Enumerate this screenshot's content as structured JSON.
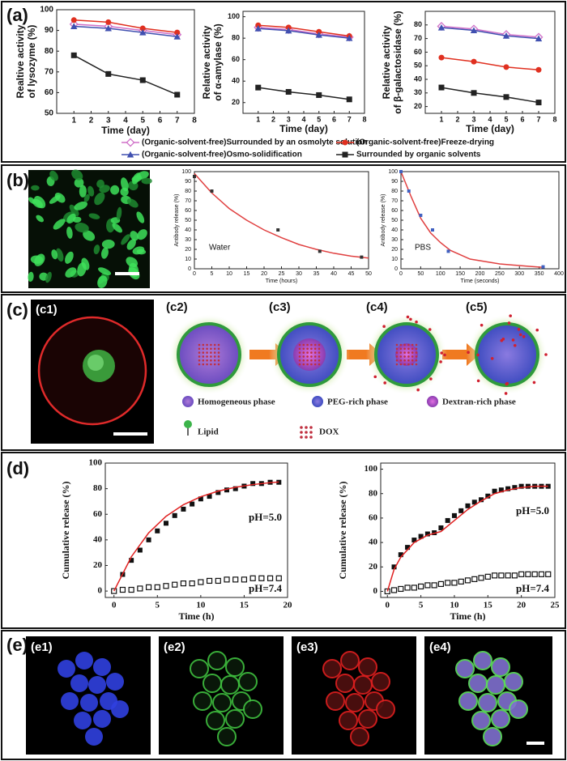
{
  "panels": {
    "a": "(a)",
    "b": "(b)",
    "c": "(c)",
    "d": "(d)",
    "e": "(e)"
  },
  "panel_c": {
    "sublabels": [
      "(c1)",
      "(c2)",
      "(c3)",
      "(c4)",
      "(c5)"
    ],
    "legend": [
      "Homogeneous phase",
      "PEG-rich phase",
      "Dextran-rich phase",
      "Lipid",
      "DOX"
    ]
  },
  "panel_e": {
    "sublabels": [
      "(e1)",
      "(e2)",
      "(e3)",
      "(e4)"
    ]
  },
  "chart_data": [
    {
      "type": "line",
      "xlabel": "Time (day)",
      "ylabel": [
        "Realtive activity",
        "of lysozyme (%)"
      ],
      "xlim": [
        0,
        8
      ],
      "xticks": [
        1,
        2,
        3,
        4,
        5,
        6,
        7,
        8
      ],
      "ylim": [
        50,
        100
      ],
      "yticks": [
        50,
        60,
        70,
        80,
        90,
        100
      ],
      "series": [
        {
          "name": "(Organic-solvent-free)Surrounded by an osmolyte solution",
          "color": "#d070c8",
          "marker": "diamond-open",
          "mode": "lines+markers",
          "x": [
            1,
            3,
            5,
            7
          ],
          "values": [
            93,
            92,
            90,
            88
          ]
        },
        {
          "name": "(Organic-solvent-free)Freeze-drying",
          "color": "#e03020",
          "marker": "circle",
          "mode": "lines+markers",
          "x": [
            1,
            3,
            5,
            7
          ],
          "values": [
            95,
            94,
            91,
            89
          ]
        },
        {
          "name": "(Organic-solvent-free)Osmo-solidification",
          "color": "#4050b0",
          "marker": "triangle",
          "mode": "lines+markers",
          "x": [
            1,
            3,
            5,
            7
          ],
          "values": [
            92,
            91,
            89,
            87
          ]
        },
        {
          "name": "Surrounded by organic solvents",
          "color": "#222222",
          "marker": "square",
          "mode": "lines+markers",
          "x": [
            1,
            3,
            5,
            7
          ],
          "values": [
            78,
            69,
            66,
            59
          ]
        }
      ]
    },
    {
      "type": "line",
      "xlabel": "Time (day)",
      "ylabel": [
        "Relative activity",
        "of α-amylase (%)"
      ],
      "xlim": [
        0,
        8
      ],
      "xticks": [
        1,
        2,
        3,
        4,
        5,
        6,
        7,
        8
      ],
      "ylim": [
        10,
        105
      ],
      "yticks": [
        20,
        40,
        60,
        80,
        100
      ],
      "series": [
        {
          "color": "#d070c8",
          "marker": "diamond-open",
          "mode": "lines+markers",
          "x": [
            1,
            3,
            5,
            7
          ],
          "values": [
            90,
            88,
            84,
            81
          ]
        },
        {
          "color": "#e03020",
          "marker": "circle",
          "mode": "lines+markers",
          "x": [
            1,
            3,
            5,
            7
          ],
          "values": [
            92,
            90,
            86,
            82
          ]
        },
        {
          "color": "#4050b0",
          "marker": "triangle",
          "mode": "lines+markers",
          "x": [
            1,
            3,
            5,
            7
          ],
          "values": [
            89,
            87,
            83,
            80
          ]
        },
        {
          "color": "#222222",
          "marker": "square",
          "mode": "lines+markers",
          "x": [
            1,
            3,
            5,
            7
          ],
          "values": [
            34,
            30,
            27,
            23
          ]
        }
      ]
    },
    {
      "type": "line",
      "xlabel": "Time (day)",
      "ylabel": [
        "Relative activity",
        "of β-galactosidase (%)"
      ],
      "xlim": [
        0,
        8
      ],
      "xticks": [
        1,
        2,
        3,
        4,
        5,
        6,
        7,
        8
      ],
      "ylim": [
        15,
        90
      ],
      "yticks": [
        20,
        30,
        40,
        50,
        60,
        70,
        80
      ],
      "series": [
        {
          "color": "#d070c8",
          "marker": "diamond-open",
          "mode": "lines+markers",
          "x": [
            1,
            3,
            5,
            7
          ],
          "values": [
            79,
            77,
            73,
            71
          ]
        },
        {
          "color": "#e03020",
          "marker": "circle",
          "mode": "lines+markers",
          "x": [
            1,
            3,
            5,
            7
          ],
          "values": [
            56,
            53,
            49,
            47
          ]
        },
        {
          "color": "#4050b0",
          "marker": "triangle",
          "mode": "lines+markers",
          "x": [
            1,
            3,
            5,
            7
          ],
          "values": [
            78,
            76,
            72,
            70
          ]
        },
        {
          "color": "#222222",
          "marker": "square",
          "mode": "lines+markers",
          "x": [
            1,
            3,
            5,
            7
          ],
          "values": [
            34,
            30,
            27,
            23
          ]
        }
      ]
    },
    {
      "type": "scatter",
      "xlabel": "Time (hours)",
      "ylabel": [
        "Antibody release (%)"
      ],
      "annotation": "Water",
      "xlim": [
        0,
        50
      ],
      "xticks": [
        0,
        5,
        10,
        15,
        20,
        25,
        30,
        35,
        40,
        45,
        50
      ],
      "ylim": [
        0,
        100
      ],
      "yticks": [
        0,
        10,
        20,
        30,
        40,
        50,
        60,
        70,
        80,
        90,
        100
      ],
      "series": [
        {
          "color": "#e04040",
          "mode": "lines",
          "x": [
            0,
            5,
            10,
            15,
            20,
            25,
            30,
            35,
            40,
            45,
            50
          ],
          "values": [
            98,
            78,
            62,
            50,
            40,
            32,
            25,
            20,
            16,
            13,
            11
          ]
        },
        {
          "color": "#333333",
          "marker": "square",
          "mode": "markers",
          "x": [
            0,
            5,
            24,
            36,
            48
          ],
          "values": [
            95,
            80,
            40,
            18,
            12
          ]
        }
      ]
    },
    {
      "type": "scatter",
      "xlabel": "Time (seconds)",
      "ylabel": [
        "Antibody release (%)"
      ],
      "annotation": "PBS",
      "xlim": [
        0,
        400
      ],
      "xticks": [
        0,
        50,
        100,
        150,
        200,
        250,
        300,
        350,
        400
      ],
      "ylim": [
        0,
        100
      ],
      "yticks": [
        0,
        10,
        20,
        30,
        40,
        50,
        60,
        70,
        80,
        90,
        100
      ],
      "series": [
        {
          "color": "#e04040",
          "mode": "lines",
          "x": [
            0,
            25,
            50,
            75,
            100,
            125,
            175,
            250,
            325,
            360
          ],
          "values": [
            100,
            75,
            52,
            37,
            27,
            19,
            10,
            5,
            2.5,
            1.5
          ]
        },
        {
          "color": "#4060c0",
          "marker": "square",
          "mode": "markers",
          "x": [
            0,
            20,
            50,
            80,
            120,
            360
          ],
          "values": [
            100,
            80,
            55,
            40,
            18,
            2
          ]
        }
      ]
    },
    {
      "type": "scatter",
      "xlabel": "Time (h)",
      "ylabel": [
        "Cumulative release (%)"
      ],
      "xlim": [
        -1,
        20
      ],
      "xticks": [
        0,
        5,
        10,
        15,
        20
      ],
      "ylim": [
        -5,
        100
      ],
      "yticks": [
        0,
        20,
        40,
        60,
        80,
        100
      ],
      "series": [
        {
          "name": "pH=5.0",
          "color": "#111111",
          "marker": "square",
          "mode": "markers",
          "x": [
            0,
            1,
            2,
            3,
            4,
            5,
            6,
            7,
            8,
            9,
            10,
            11,
            12,
            13,
            14,
            15,
            16,
            17,
            18,
            19
          ],
          "values": [
            0,
            13,
            24,
            32,
            40,
            47,
            53,
            59,
            64,
            68,
            72,
            74,
            77,
            79,
            80,
            82,
            84,
            84,
            85,
            85
          ]
        },
        {
          "name": "pH=7.4",
          "color": "#111111",
          "marker": "square-open",
          "mode": "markers",
          "x": [
            0,
            1,
            2,
            3,
            4,
            5,
            6,
            7,
            8,
            9,
            10,
            11,
            12,
            13,
            14,
            15,
            16,
            17,
            18,
            19
          ],
          "values": [
            0,
            1,
            1,
            2,
            3,
            3,
            4,
            5,
            6,
            6,
            7,
            8,
            8,
            9,
            9,
            9,
            10,
            10,
            10,
            10
          ]
        },
        {
          "color": "#e02020",
          "mode": "lines",
          "x": [
            0,
            2,
            4,
            6,
            8,
            10,
            12,
            14,
            16,
            18,
            19
          ],
          "values": [
            0,
            26.8,
            45.5,
            58.4,
            67.5,
            73.7,
            78.1,
            81.1,
            83.2,
            84.7,
            85.2
          ]
        }
      ]
    },
    {
      "type": "scatter",
      "xlabel": "Time (h)",
      "ylabel": [
        "Cumulative release (%)"
      ],
      "xlim": [
        -1,
        25
      ],
      "xticks": [
        0,
        5,
        10,
        15,
        20,
        25
      ],
      "ylim": [
        -5,
        105
      ],
      "yticks": [
        0,
        20,
        40,
        60,
        80,
        100
      ],
      "series": [
        {
          "name": "pH=5.0",
          "color": "#111111",
          "marker": "square",
          "mode": "markers",
          "x": [
            0,
            1,
            2,
            3,
            4,
            5,
            6,
            7,
            8,
            9,
            10,
            11,
            12,
            13,
            14,
            15,
            16,
            17,
            18,
            19,
            20,
            21,
            22,
            23,
            24
          ],
          "values": [
            0,
            20,
            30,
            36,
            42,
            45,
            47,
            48,
            52,
            58,
            62,
            66,
            70,
            73,
            75,
            78,
            82,
            83,
            84,
            85,
            86,
            86,
            86,
            86,
            86
          ]
        },
        {
          "name": "pH=7.4",
          "color": "#111111",
          "marker": "square-open",
          "mode": "markers",
          "x": [
            0,
            1,
            2,
            3,
            4,
            5,
            6,
            7,
            8,
            9,
            10,
            11,
            12,
            13,
            14,
            15,
            16,
            17,
            18,
            19,
            20,
            21,
            22,
            23,
            24
          ],
          "values": [
            0,
            1,
            2,
            3,
            3,
            4,
            5,
            5,
            6,
            7,
            7,
            8,
            9,
            10,
            11,
            12,
            13,
            13,
            13,
            13,
            14,
            14,
            14,
            14,
            14
          ]
        },
        {
          "color": "#e02020",
          "mode": "lines",
          "x": [
            0,
            1,
            2,
            4,
            6,
            8,
            10,
            12,
            14,
            16,
            18,
            20,
            22,
            24
          ],
          "values": [
            0,
            18,
            28,
            40,
            46,
            49,
            58,
            67,
            74,
            80,
            83,
            85,
            86,
            86
          ]
        }
      ]
    }
  ]
}
